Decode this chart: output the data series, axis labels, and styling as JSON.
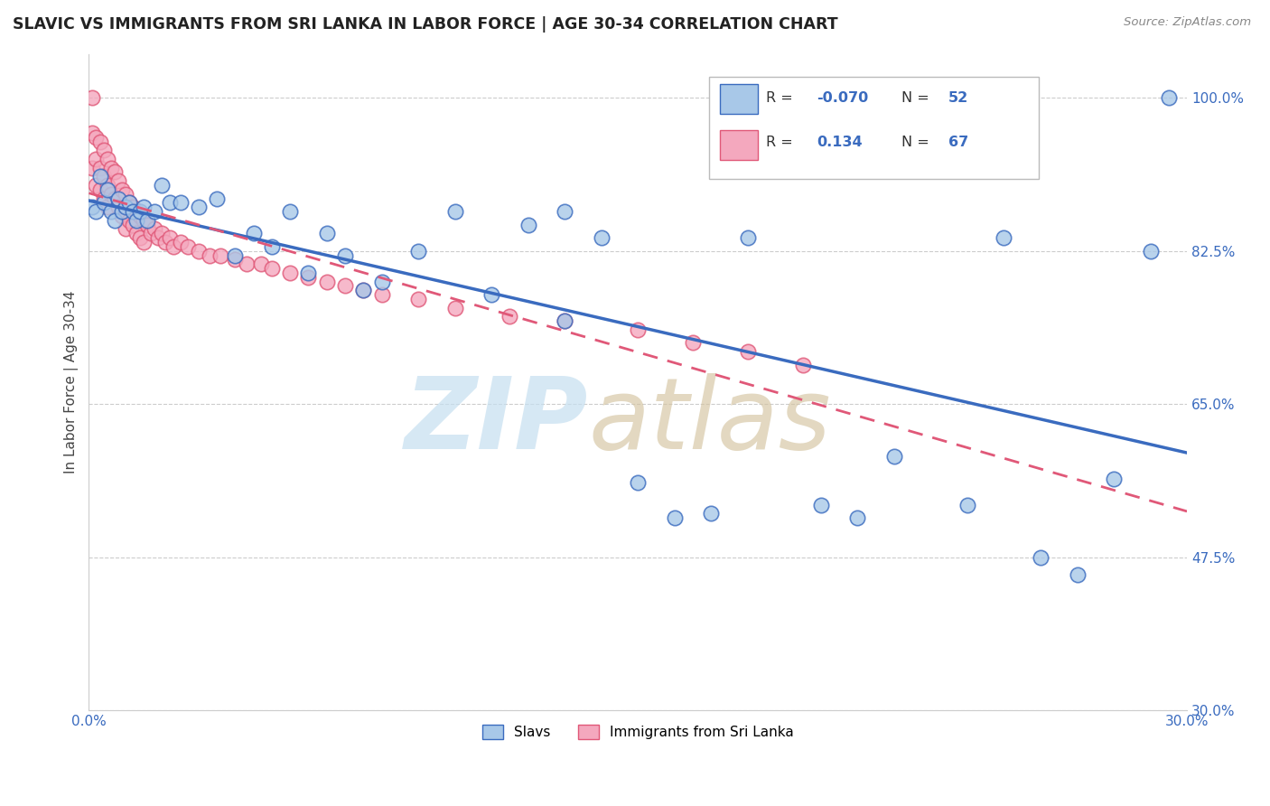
{
  "title": "SLAVIC VS IMMIGRANTS FROM SRI LANKA IN LABOR FORCE | AGE 30-34 CORRELATION CHART",
  "source": "Source: ZipAtlas.com",
  "ylabel": "In Labor Force | Age 30-34",
  "xlim": [
    0.0,
    0.3
  ],
  "ylim": [
    0.3,
    1.05
  ],
  "ytick_positions": [
    0.3,
    0.475,
    0.65,
    0.825,
    1.0
  ],
  "yticklabels": [
    "30.0%",
    "47.5%",
    "65.0%",
    "82.5%",
    "100.0%"
  ],
  "slavs_color": "#a8c8e8",
  "sri_lanka_color": "#f4a8be",
  "slavs_line_color": "#3a6bbf",
  "sri_lanka_line_color": "#e05878",
  "R_slavs": -0.07,
  "N_slavs": 52,
  "R_sri": 0.134,
  "N_sri": 67,
  "grid_color": "#cccccc",
  "slavs_x": [
    0.001,
    0.002,
    0.003,
    0.004,
    0.005,
    0.006,
    0.007,
    0.008,
    0.009,
    0.01,
    0.011,
    0.012,
    0.013,
    0.014,
    0.015,
    0.016,
    0.018,
    0.02,
    0.022,
    0.025,
    0.03,
    0.035,
    0.04,
    0.045,
    0.05,
    0.055,
    0.06,
    0.065,
    0.07,
    0.075,
    0.08,
    0.09,
    0.1,
    0.11,
    0.12,
    0.13,
    0.14,
    0.15,
    0.16,
    0.17,
    0.18,
    0.2,
    0.21,
    0.22,
    0.24,
    0.25,
    0.26,
    0.27,
    0.28,
    0.29,
    0.13,
    0.295
  ],
  "slavs_y": [
    0.875,
    0.87,
    0.91,
    0.88,
    0.895,
    0.87,
    0.86,
    0.885,
    0.87,
    0.875,
    0.88,
    0.87,
    0.86,
    0.87,
    0.875,
    0.86,
    0.87,
    0.9,
    0.88,
    0.88,
    0.875,
    0.885,
    0.82,
    0.845,
    0.83,
    0.87,
    0.8,
    0.845,
    0.82,
    0.78,
    0.79,
    0.825,
    0.87,
    0.775,
    0.855,
    0.87,
    0.84,
    0.56,
    0.52,
    0.525,
    0.84,
    0.535,
    0.52,
    0.59,
    0.535,
    0.84,
    0.475,
    0.455,
    0.565,
    0.825,
    0.745,
    1.0
  ],
  "sri_lanka_x": [
    0.001,
    0.001,
    0.001,
    0.002,
    0.002,
    0.002,
    0.003,
    0.003,
    0.003,
    0.004,
    0.004,
    0.004,
    0.005,
    0.005,
    0.005,
    0.006,
    0.006,
    0.007,
    0.007,
    0.008,
    0.008,
    0.009,
    0.009,
    0.01,
    0.01,
    0.01,
    0.011,
    0.011,
    0.012,
    0.012,
    0.013,
    0.013,
    0.014,
    0.014,
    0.015,
    0.015,
    0.016,
    0.017,
    0.018,
    0.019,
    0.02,
    0.021,
    0.022,
    0.023,
    0.025,
    0.027,
    0.03,
    0.033,
    0.036,
    0.04,
    0.043,
    0.047,
    0.05,
    0.055,
    0.06,
    0.065,
    0.07,
    0.075,
    0.08,
    0.09,
    0.1,
    0.115,
    0.13,
    0.15,
    0.165,
    0.18,
    0.195
  ],
  "sri_lanka_y": [
    1.0,
    0.96,
    0.92,
    0.955,
    0.93,
    0.9,
    0.95,
    0.92,
    0.895,
    0.94,
    0.91,
    0.885,
    0.93,
    0.9,
    0.875,
    0.92,
    0.89,
    0.915,
    0.885,
    0.905,
    0.875,
    0.895,
    0.865,
    0.89,
    0.87,
    0.85,
    0.88,
    0.86,
    0.875,
    0.855,
    0.87,
    0.845,
    0.865,
    0.84,
    0.86,
    0.835,
    0.855,
    0.845,
    0.85,
    0.84,
    0.845,
    0.835,
    0.84,
    0.83,
    0.835,
    0.83,
    0.825,
    0.82,
    0.82,
    0.815,
    0.81,
    0.81,
    0.805,
    0.8,
    0.795,
    0.79,
    0.785,
    0.78,
    0.775,
    0.77,
    0.76,
    0.75,
    0.745,
    0.735,
    0.72,
    0.71,
    0.695
  ]
}
